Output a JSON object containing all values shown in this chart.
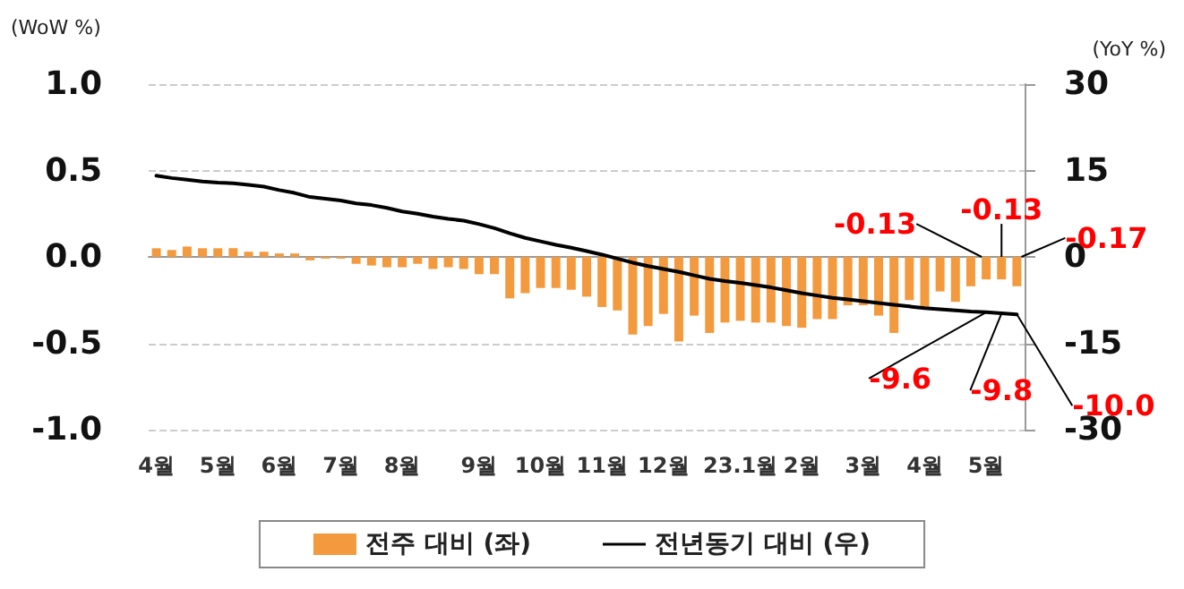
{
  "chart_data": {
    "type": "bar",
    "ylabel": "(WoW %)",
    "y2label": "(YoY %)",
    "categories": [
      "4월",
      null,
      null,
      null,
      "5월",
      null,
      null,
      null,
      "6월",
      null,
      null,
      null,
      "7월",
      null,
      null,
      null,
      "8월",
      null,
      null,
      null,
      null,
      "9월",
      null,
      null,
      null,
      "10월",
      null,
      null,
      null,
      "11월",
      null,
      null,
      null,
      "12월",
      null,
      null,
      null,
      null,
      "23.1월",
      null,
      null,
      null,
      "2월",
      null,
      null,
      null,
      "3월",
      null,
      null,
      null,
      "4월",
      null,
      null,
      null,
      "5월",
      null,
      null
    ],
    "series": [
      {
        "name": "전주 대비 (좌)",
        "color": "#f39a3f",
        "values": [
          0.05,
          0.04,
          0.06,
          0.05,
          0.05,
          0.05,
          0.03,
          0.03,
          0.02,
          0.02,
          -0.02,
          -0.01,
          -0.01,
          -0.04,
          -0.05,
          -0.06,
          -0.06,
          -0.04,
          -0.07,
          -0.06,
          -0.07,
          -0.1,
          -0.1,
          -0.24,
          -0.21,
          -0.18,
          -0.18,
          -0.19,
          -0.23,
          -0.29,
          -0.31,
          -0.45,
          -0.4,
          -0.33,
          -0.49,
          -0.34,
          -0.44,
          -0.38,
          -0.37,
          -0.38,
          -0.38,
          -0.4,
          -0.41,
          -0.36,
          -0.36,
          -0.28,
          -0.28,
          -0.34,
          -0.44,
          -0.25,
          -0.29,
          -0.2,
          -0.26,
          -0.17,
          -0.13,
          -0.13,
          -0.17
        ],
        "value_labels": [
          null,
          null,
          null,
          null,
          null,
          null,
          null,
          null,
          null,
          null,
          null,
          null,
          null,
          null,
          null,
          null,
          null,
          null,
          null,
          null,
          null,
          null,
          null,
          null,
          null,
          null,
          null,
          null,
          null,
          null,
          null,
          null,
          null,
          null,
          null,
          null,
          null,
          null,
          null,
          null,
          null,
          null,
          null,
          null,
          null,
          null,
          null,
          null,
          null,
          null,
          null,
          null,
          null,
          null,
          "-0.13",
          "-0.13",
          "-0.17"
        ]
      },
      {
        "name": "전년동기 대비 (우)",
        "type": "line",
        "axis": "y2",
        "color": "#000000",
        "values": [
          14.1,
          13.7,
          13.4,
          13.1,
          12.9,
          12.8,
          12.5,
          12.2,
          11.6,
          11.1,
          10.4,
          10.1,
          9.8,
          9.3,
          9.0,
          8.5,
          7.9,
          7.5,
          7.0,
          6.6,
          6.3,
          5.7,
          5.0,
          4.1,
          3.3,
          2.7,
          2.1,
          1.6,
          1.0,
          0.4,
          -0.3,
          -1.0,
          -1.6,
          -2.1,
          -2.6,
          -3.2,
          -3.8,
          -4.2,
          -4.5,
          -4.9,
          -5.3,
          -5.8,
          -6.3,
          -6.7,
          -7.1,
          -7.4,
          -7.7,
          -8.0,
          -8.3,
          -8.6,
          -8.9,
          -9.1,
          -9.3,
          -9.5,
          -9.6,
          -9.8,
          -10.0
        ],
        "value_labels": [
          null,
          null,
          null,
          null,
          null,
          null,
          null,
          null,
          null,
          null,
          null,
          null,
          null,
          null,
          null,
          null,
          null,
          null,
          null,
          null,
          null,
          null,
          null,
          null,
          null,
          null,
          null,
          null,
          null,
          null,
          null,
          null,
          null,
          null,
          null,
          null,
          null,
          null,
          null,
          null,
          null,
          null,
          null,
          null,
          null,
          null,
          null,
          null,
          null,
          null,
          null,
          null,
          null,
          null,
          "-9.6",
          "-9.8",
          "-10.0"
        ]
      }
    ],
    "ylim": [
      -1.0,
      1.0
    ],
    "yticks": [
      {
        "value": -1.0,
        "label": "-1.0"
      },
      {
        "value": -0.5,
        "label": "-0.5"
      },
      {
        "value": 0,
        "label": "0.0"
      },
      {
        "value": 0.5,
        "label": "0.5"
      },
      {
        "value": 1.0,
        "label": "1.0"
      }
    ],
    "y2lim": [
      -30,
      30
    ],
    "y2ticks": [
      -30,
      -15,
      0,
      15,
      30
    ],
    "grid": "y",
    "legend": "bottom",
    "marker": "none"
  }
}
